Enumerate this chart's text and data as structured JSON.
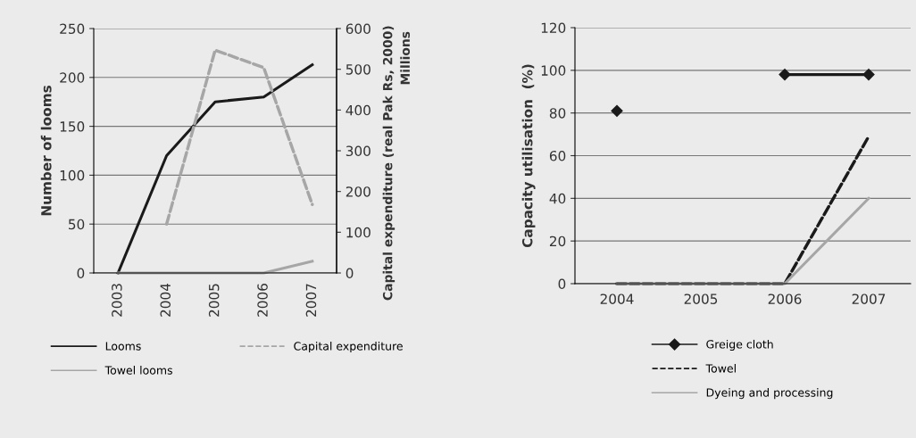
{
  "chart_data": [
    {
      "type": "line",
      "categories": [
        "2003",
        "2004",
        "2005",
        "2006",
        "2007"
      ],
      "ylabel": "Number of looms",
      "y2label": "Capital expenditure (real Pak Rs, 2000)",
      "annotations": [
        "Millions"
      ],
      "ylim": [
        0,
        250
      ],
      "yticks": [
        0,
        50,
        100,
        150,
        200,
        250
      ],
      "y2lim": [
        0,
        600
      ],
      "y2ticks": [
        0,
        100,
        200,
        300,
        400,
        500,
        600
      ],
      "grid": "y",
      "legend": "bottom",
      "series": [
        {
          "name": "Looms",
          "color": "#1a1a1a",
          "values": [
            0,
            120,
            175,
            180,
            213
          ],
          "line_style": "solid"
        },
        {
          "name": "Towel looms",
          "color": "#a6a6a6",
          "values": [
            0,
            0,
            0,
            0,
            12
          ],
          "line_style": "solid"
        },
        {
          "name": "Capital expenditure",
          "color": "#a6a6a6",
          "values": [
            null,
            120,
            547,
            504,
            168
          ],
          "line_style": "dashed",
          "axis": "y2"
        }
      ]
    },
    {
      "type": "line",
      "categories": [
        "2004",
        "2005",
        "2006",
        "2007"
      ],
      "ylabel": "Capacity utilisation  (%)",
      "ylim": [
        0,
        120
      ],
      "yticks": [
        0,
        20,
        40,
        60,
        80,
        100,
        120
      ],
      "grid": "y",
      "legend": "bottom",
      "series": [
        {
          "name": "Greige cloth",
          "color": "#1a1a1a",
          "values": [
            81,
            null,
            98,
            98
          ],
          "line_style": "solid",
          "marker": "diamond"
        },
        {
          "name": "Towel",
          "color": "#1a1a1a",
          "values": [
            0,
            0,
            0,
            69
          ],
          "line_style": "dashed"
        },
        {
          "name": "Dyeing and processing",
          "color": "#a6a6a6",
          "values": [
            0,
            0,
            0,
            40
          ],
          "line_style": "solid"
        }
      ]
    }
  ]
}
